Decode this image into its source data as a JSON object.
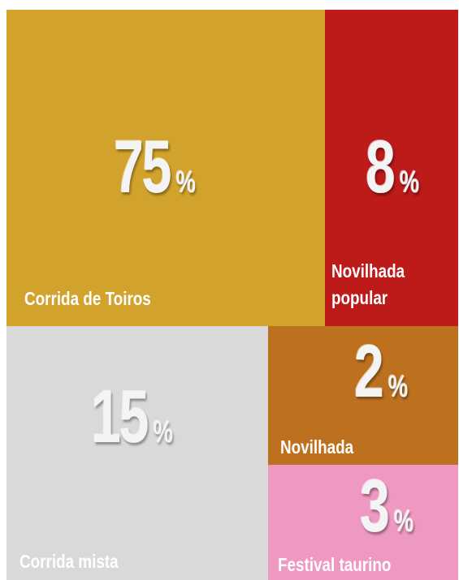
{
  "chart_data": {
    "type": "treemap",
    "unit": "%",
    "categories": [
      "Corrida de Toiros",
      "Novilhada popular",
      "Corrida mista",
      "Novilhada",
      "Festival taurino"
    ],
    "values": [
      75,
      8,
      15,
      2,
      3
    ],
    "colors": [
      "#d1a22c",
      "#bd1a1a",
      "#d9d9d9",
      "#bd711f",
      "#ee98c2"
    ]
  }
}
